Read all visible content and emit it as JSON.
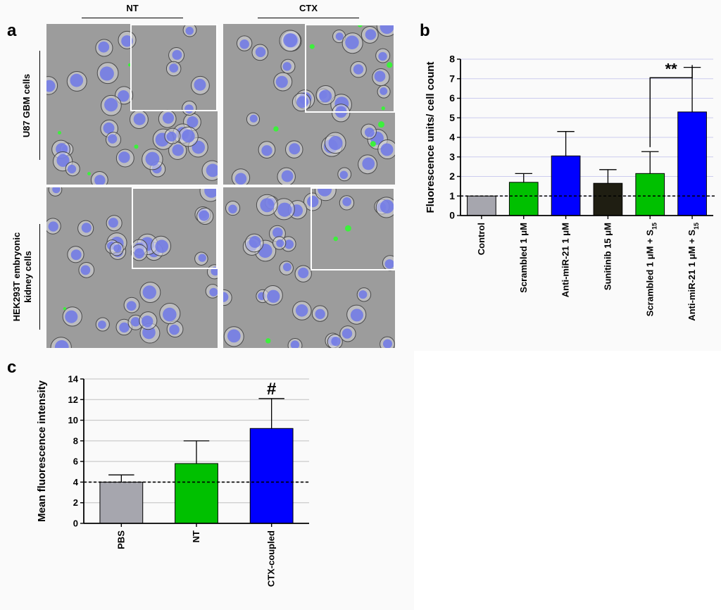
{
  "panel_a": {
    "letter": "a",
    "columns": [
      "NT",
      "CTX"
    ],
    "rows": [
      {
        "label_lines": [
          "U87 GBM cells"
        ]
      },
      {
        "label_lines": [
          "HEK293T embryonic",
          "kidney cells"
        ]
      }
    ]
  },
  "panel_b": {
    "letter": "b"
  },
  "panel_c": {
    "letter": "c"
  },
  "chart_data": [
    {
      "type": "bar",
      "panel": "b",
      "ylabel": "Fluorescence units/ cell count",
      "ylim": [
        0,
        8
      ],
      "yticks": [
        0,
        1,
        2,
        3,
        4,
        5,
        6,
        7,
        8
      ],
      "grid": true,
      "categories": [
        "Control",
        "Scrambled 1 μM",
        "Anti-miR-21 1 μM",
        "Sunitinib 15 μM",
        "Scrambled 1 μM + S15",
        "Anti-miR-21 1 μM + S15"
      ],
      "values": [
        1.0,
        1.7,
        3.05,
        1.65,
        2.15,
        5.3
      ],
      "errors": [
        0,
        0.45,
        1.25,
        0.7,
        1.12,
        2.28
      ],
      "colors": [
        "#a6a6ae",
        "#00c000",
        "#0000ff",
        "#1f1e12",
        "#00c000",
        "#0000ff"
      ],
      "reference_line": 1,
      "annotation": {
        "text": "**",
        "between": [
          4,
          5
        ]
      }
    },
    {
      "type": "bar",
      "panel": "c",
      "ylabel": "Mean fluorescence intensity",
      "ylim": [
        0,
        14
      ],
      "yticks": [
        0,
        2,
        4,
        6,
        8,
        10,
        12,
        14
      ],
      "grid": true,
      "categories": [
        "PBS",
        "NT",
        "CTX-coupled"
      ],
      "values": [
        4.0,
        5.8,
        9.2
      ],
      "errors": [
        0.7,
        2.2,
        2.9
      ],
      "colors": [
        "#a6a6ae",
        "#00c000",
        "#0000ff"
      ],
      "reference_line": 4,
      "annotation": {
        "text": "#",
        "over": 2
      }
    }
  ]
}
